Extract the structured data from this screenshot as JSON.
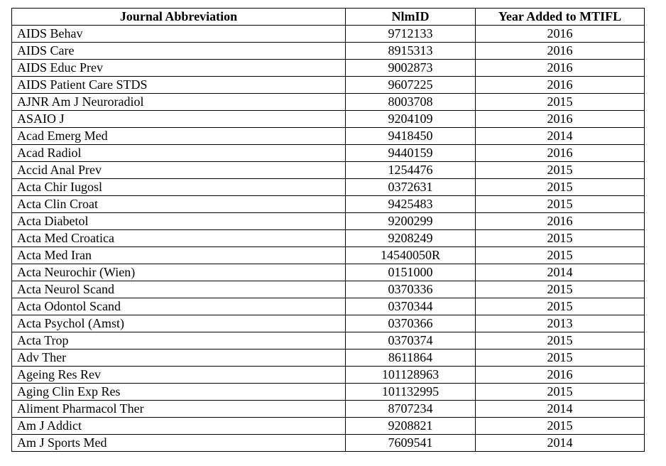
{
  "table": {
    "headers": [
      "Journal Abbreviation",
      "NlmID",
      "Year Added to MTIFL"
    ],
    "rows": [
      [
        "AIDS Behav",
        "9712133",
        "2016"
      ],
      [
        "AIDS Care",
        "8915313",
        "2016"
      ],
      [
        "AIDS Educ Prev",
        "9002873",
        "2016"
      ],
      [
        "AIDS Patient Care STDS",
        "9607225",
        "2016"
      ],
      [
        "AJNR Am J Neuroradiol",
        "8003708",
        "2015"
      ],
      [
        "ASAIO J",
        "9204109",
        "2016"
      ],
      [
        "Acad Emerg Med",
        "9418450",
        "2014"
      ],
      [
        "Acad Radiol",
        "9440159",
        "2016"
      ],
      [
        "Accid Anal Prev",
        "1254476",
        "2015"
      ],
      [
        "Acta Chir Iugosl",
        "0372631",
        "2015"
      ],
      [
        "Acta Clin Croat",
        "9425483",
        "2015"
      ],
      [
        "Acta Diabetol",
        "9200299",
        "2016"
      ],
      [
        "Acta Med Croatica",
        "9208249",
        "2015"
      ],
      [
        "Acta Med Iran",
        "14540050R",
        "2015"
      ],
      [
        "Acta Neurochir (Wien)",
        "0151000",
        "2014"
      ],
      [
        "Acta Neurol Scand",
        "0370336",
        "2015"
      ],
      [
        "Acta Odontol Scand",
        "0370344",
        "2015"
      ],
      [
        "Acta Psychol (Amst)",
        "0370366",
        "2013"
      ],
      [
        "Acta Trop",
        "0370374",
        "2015"
      ],
      [
        "Adv Ther",
        "8611864",
        "2015"
      ],
      [
        "Ageing Res Rev",
        "101128963",
        "2016"
      ],
      [
        "Aging Clin Exp Res",
        "101132995",
        "2015"
      ],
      [
        "Aliment Pharmacol Ther",
        "8707234",
        "2014"
      ],
      [
        "Am J Addict",
        "9208821",
        "2015"
      ],
      [
        "Am J Sports Med",
        "7609541",
        "2014"
      ]
    ]
  }
}
